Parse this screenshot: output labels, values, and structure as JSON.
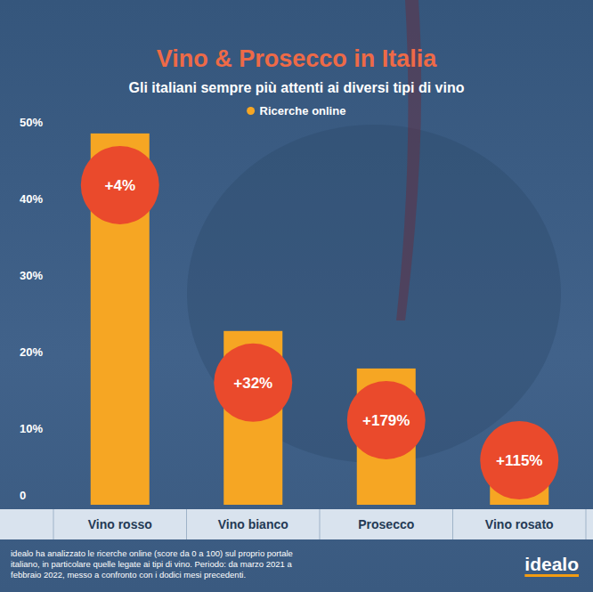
{
  "chart_data": {
    "type": "bar",
    "title": "Vino & Prosecco in Italia",
    "subtitle": "Gli italiani sempre più attenti ai diversi tipi di vino",
    "categories": [
      "Vino rosso",
      "Vino bianco",
      "Prosecco",
      "Vino rosato"
    ],
    "series": [
      {
        "name": "Ricerche online",
        "color": "#f6a623",
        "values": [
          48.5,
          22.7,
          17.8,
          4.0
        ]
      }
    ],
    "annotations": [
      "+4%",
      "+32%",
      "+179%",
      "+115%"
    ],
    "ylim": [
      0,
      50
    ],
    "yticks": [
      0,
      {
        "value": 10,
        "label": "10%"
      },
      {
        "value": 20,
        "label": "20%"
      },
      {
        "value": 30,
        "label": "30%"
      },
      {
        "value": 40,
        "label": "40%"
      },
      {
        "value": 50,
        "label": "50%"
      }
    ],
    "grid": false,
    "legend": "top",
    "note": [
      "idealo ha analizzato le ricerche online (score da 0 a 100) sul proprio portale",
      "italiano, in particolare quelle legate ai tipi di vino. Periodo: da marzo 2021 a",
      "febbraio 2022, messo a confronto con i dodici mesi precedenti."
    ],
    "brand": "idealo"
  }
}
